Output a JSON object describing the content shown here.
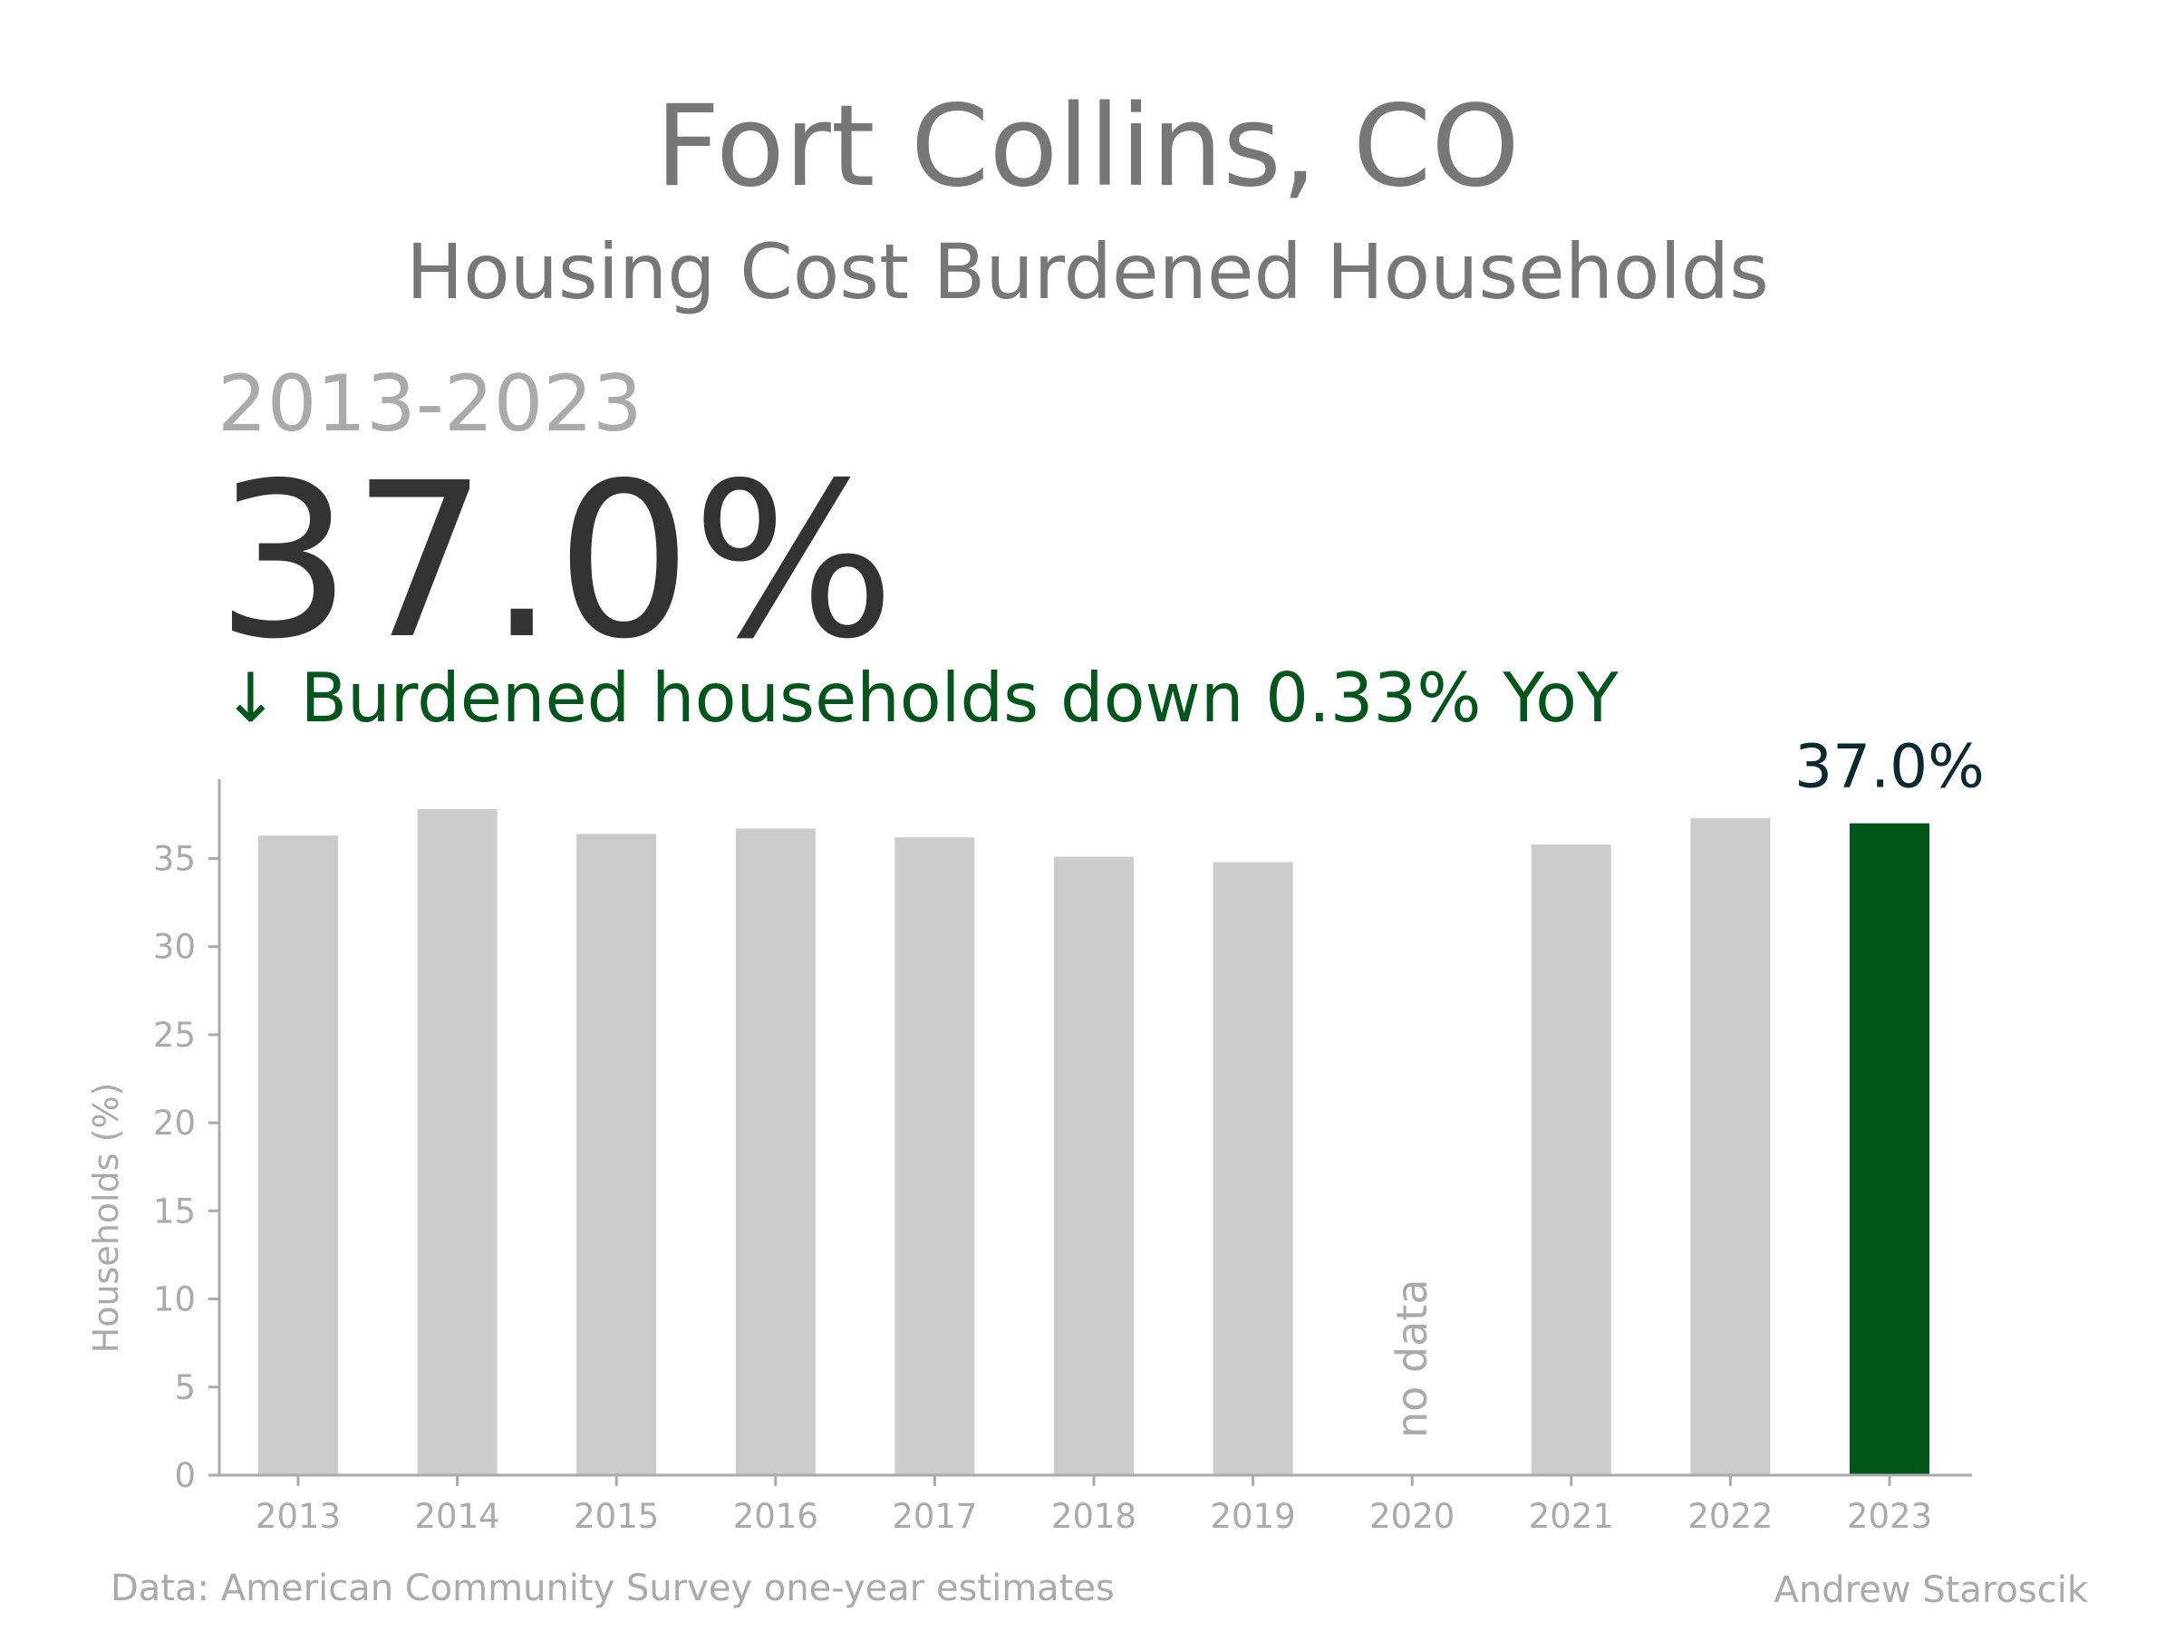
{
  "header": {
    "title": "Fort Collins, CO",
    "subtitle": "Housing Cost Burdened Households",
    "period": "2013-2023",
    "headline_value": "37.0%",
    "change_text": "↓ Burdened households down 0.33% YoY"
  },
  "footer": {
    "source": "Data: American Community Survey one-year estimates",
    "author": "Andrew Staroscik"
  },
  "colors": {
    "bar_default": "#cccccc",
    "bar_highlight": "#02561c",
    "axis": "#aaaaaa",
    "change_text": "#02561c"
  },
  "chart_data": {
    "type": "bar",
    "categories": [
      "2013",
      "2014",
      "2015",
      "2016",
      "2017",
      "2018",
      "2019",
      "2020",
      "2021",
      "2022",
      "2023"
    ],
    "values": [
      36.3,
      37.8,
      36.4,
      36.7,
      36.2,
      35.1,
      34.8,
      null,
      35.8,
      37.3,
      37.0
    ],
    "ylabel": "Households (%)",
    "xlabel": "",
    "ylim": [
      0,
      39.5
    ],
    "yticks": [
      0,
      5,
      10,
      15,
      20,
      25,
      30,
      35
    ],
    "highlight_category": "2023",
    "highlight_label": "37.0%",
    "missing_label": "no data",
    "grid": false
  }
}
